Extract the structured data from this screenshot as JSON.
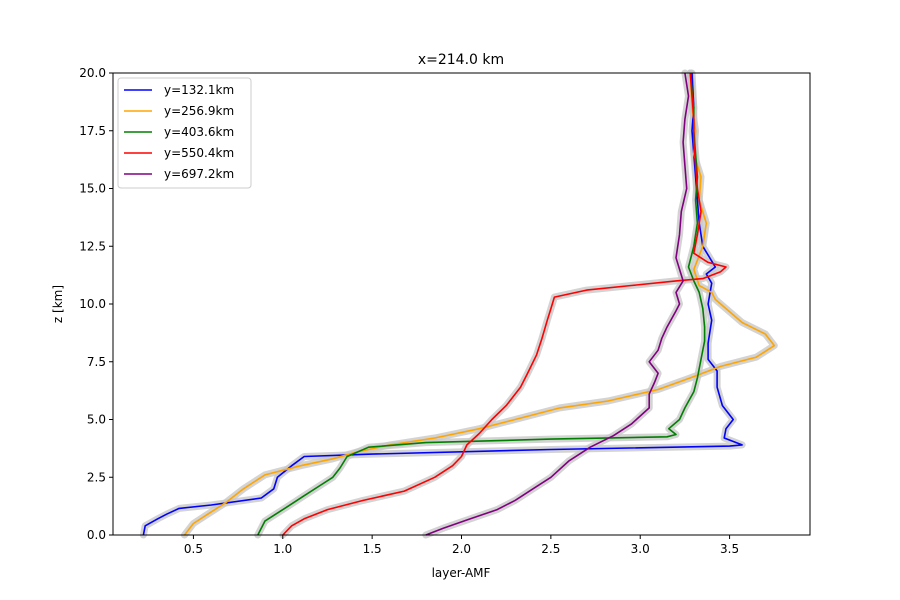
{
  "chart_data": {
    "type": "line",
    "title": "x=214.0 km",
    "xlabel": "layer-AMF",
    "ylabel": "z [km]",
    "xlim": [
      0.05,
      3.95
    ],
    "ylim": [
      0,
      20
    ],
    "xticks": [
      0.5,
      1.0,
      1.5,
      2.0,
      2.5,
      3.0,
      3.5
    ],
    "xtick_labels": [
      "0.5",
      "1.0",
      "1.5",
      "2.0",
      "2.5",
      "3.0",
      "3.5"
    ],
    "yticks": [
      0,
      2.5,
      5,
      7.5,
      10,
      12.5,
      15,
      17.5,
      20
    ],
    "ytick_labels": [
      "0.0",
      "2.5",
      "5.0",
      "7.5",
      "10.0",
      "12.5",
      "15.0",
      "17.5",
      "20.0"
    ],
    "grid": false,
    "legend_position": "top-left",
    "uncertainty_band_color": "#c8c8c8",
    "series": [
      {
        "name": "y=132.1km",
        "color": "#0000ff",
        "points": [
          [
            0.22,
            0
          ],
          [
            0.23,
            0.4
          ],
          [
            0.3,
            0.7
          ],
          [
            0.35,
            0.9
          ],
          [
            0.42,
            1.15
          ],
          [
            0.6,
            1.3
          ],
          [
            0.88,
            1.6
          ],
          [
            0.95,
            2.0
          ],
          [
            0.97,
            2.5
          ],
          [
            1.05,
            3.0
          ],
          [
            1.12,
            3.4
          ],
          [
            1.5,
            3.5
          ],
          [
            2.5,
            3.7
          ],
          [
            3.5,
            3.85
          ],
          [
            3.57,
            3.9
          ],
          [
            3.47,
            4.2
          ],
          [
            3.48,
            4.6
          ],
          [
            3.52,
            5.0
          ],
          [
            3.46,
            5.6
          ],
          [
            3.43,
            6.4
          ],
          [
            3.43,
            7.1
          ],
          [
            3.38,
            7.6
          ],
          [
            3.38,
            8.3
          ],
          [
            3.4,
            9.3
          ],
          [
            3.38,
            10.0
          ],
          [
            3.4,
            10.9
          ],
          [
            3.37,
            11.3
          ],
          [
            3.42,
            11.6
          ],
          [
            3.35,
            12.5
          ],
          [
            3.33,
            13.5
          ],
          [
            3.32,
            14.5
          ],
          [
            3.31,
            15.5
          ],
          [
            3.3,
            16.5
          ],
          [
            3.29,
            17.5
          ],
          [
            3.3,
            18.5
          ],
          [
            3.29,
            20.0
          ]
        ]
      },
      {
        "name": "y=256.9km",
        "color": "#ffa500",
        "points": [
          [
            0.45,
            0
          ],
          [
            0.5,
            0.5
          ],
          [
            0.58,
            0.9
          ],
          [
            0.68,
            1.4
          ],
          [
            0.78,
            2.0
          ],
          [
            0.9,
            2.6
          ],
          [
            1.1,
            3.0
          ],
          [
            1.28,
            3.3
          ],
          [
            1.42,
            3.6
          ],
          [
            1.6,
            3.9
          ],
          [
            1.85,
            4.2
          ],
          [
            2.1,
            4.6
          ],
          [
            2.3,
            5.0
          ],
          [
            2.55,
            5.5
          ],
          [
            2.82,
            5.8
          ],
          [
            3.1,
            6.3
          ],
          [
            3.28,
            6.8
          ],
          [
            3.45,
            7.3
          ],
          [
            3.65,
            7.7
          ],
          [
            3.75,
            8.2
          ],
          [
            3.7,
            8.7
          ],
          [
            3.57,
            9.2
          ],
          [
            3.48,
            9.8
          ],
          [
            3.42,
            10.2
          ],
          [
            3.4,
            10.5
          ],
          [
            3.33,
            10.8
          ],
          [
            3.3,
            11.5
          ],
          [
            3.35,
            12.5
          ],
          [
            3.37,
            13.5
          ],
          [
            3.33,
            14.5
          ],
          [
            3.34,
            15.5
          ],
          [
            3.3,
            16.5
          ],
          [
            3.31,
            17.5
          ],
          [
            3.29,
            18.5
          ],
          [
            3.28,
            20.0
          ]
        ]
      },
      {
        "name": "y=403.6km",
        "color": "#008000",
        "points": [
          [
            0.86,
            0
          ],
          [
            0.9,
            0.6
          ],
          [
            1.02,
            1.2
          ],
          [
            1.12,
            1.7
          ],
          [
            1.2,
            2.1
          ],
          [
            1.28,
            2.5
          ],
          [
            1.32,
            2.9
          ],
          [
            1.36,
            3.4
          ],
          [
            1.48,
            3.8
          ],
          [
            1.8,
            4.0
          ],
          [
            2.5,
            4.15
          ],
          [
            3.15,
            4.25
          ],
          [
            3.2,
            4.35
          ],
          [
            3.16,
            4.6
          ],
          [
            3.22,
            5.0
          ],
          [
            3.25,
            5.5
          ],
          [
            3.3,
            6.2
          ],
          [
            3.32,
            6.8
          ],
          [
            3.34,
            7.6
          ],
          [
            3.36,
            8.4
          ],
          [
            3.36,
            9.0
          ],
          [
            3.35,
            9.8
          ],
          [
            3.33,
            10.5
          ],
          [
            3.3,
            11.0
          ],
          [
            3.27,
            11.6
          ],
          [
            3.3,
            12.5
          ],
          [
            3.32,
            13.5
          ],
          [
            3.31,
            14.5
          ],
          [
            3.32,
            15.5
          ],
          [
            3.31,
            16.5
          ],
          [
            3.3,
            17.5
          ],
          [
            3.3,
            18.5
          ],
          [
            3.28,
            20.0
          ]
        ]
      },
      {
        "name": "y=550.4km",
        "color": "#ff0000",
        "points": [
          [
            1.0,
            0
          ],
          [
            1.05,
            0.4
          ],
          [
            1.12,
            0.7
          ],
          [
            1.25,
            1.1
          ],
          [
            1.45,
            1.5
          ],
          [
            1.68,
            1.9
          ],
          [
            1.85,
            2.5
          ],
          [
            1.95,
            3.0
          ],
          [
            2.0,
            3.4
          ],
          [
            2.03,
            3.9
          ],
          [
            2.1,
            4.4
          ],
          [
            2.17,
            5.0
          ],
          [
            2.25,
            5.6
          ],
          [
            2.33,
            6.4
          ],
          [
            2.37,
            7.0
          ],
          [
            2.42,
            7.8
          ],
          [
            2.45,
            8.5
          ],
          [
            2.48,
            9.3
          ],
          [
            2.5,
            9.8
          ],
          [
            2.52,
            10.3
          ],
          [
            2.7,
            10.6
          ],
          [
            2.95,
            10.8
          ],
          [
            3.2,
            11.0
          ],
          [
            3.35,
            11.1
          ],
          [
            3.45,
            11.4
          ],
          [
            3.48,
            11.6
          ],
          [
            3.38,
            11.8
          ],
          [
            3.3,
            12.2
          ],
          [
            3.32,
            13.0
          ],
          [
            3.34,
            14.0
          ],
          [
            3.32,
            15.0
          ],
          [
            3.31,
            16.0
          ],
          [
            3.3,
            17.0
          ],
          [
            3.3,
            18.0
          ],
          [
            3.29,
            19.0
          ],
          [
            3.28,
            20.0
          ]
        ]
      },
      {
        "name": "y=697.2km",
        "color": "#800080",
        "points": [
          [
            1.8,
            0
          ],
          [
            1.9,
            0.3
          ],
          [
            2.05,
            0.7
          ],
          [
            2.2,
            1.1
          ],
          [
            2.3,
            1.5
          ],
          [
            2.4,
            2.0
          ],
          [
            2.5,
            2.5
          ],
          [
            2.6,
            3.2
          ],
          [
            2.72,
            3.8
          ],
          [
            2.85,
            4.3
          ],
          [
            2.95,
            4.8
          ],
          [
            3.05,
            5.5
          ],
          [
            3.05,
            6.1
          ],
          [
            3.08,
            6.6
          ],
          [
            3.1,
            7.0
          ],
          [
            3.05,
            7.5
          ],
          [
            3.1,
            8.0
          ],
          [
            3.12,
            8.5
          ],
          [
            3.15,
            9.0
          ],
          [
            3.2,
            9.7
          ],
          [
            3.22,
            10.0
          ],
          [
            3.2,
            10.5
          ],
          [
            3.24,
            11.0
          ],
          [
            3.2,
            12.0
          ],
          [
            3.22,
            13.0
          ],
          [
            3.23,
            14.0
          ],
          [
            3.26,
            15.0
          ],
          [
            3.25,
            16.0
          ],
          [
            3.24,
            17.0
          ],
          [
            3.25,
            18.0
          ],
          [
            3.27,
            19.0
          ],
          [
            3.25,
            20.0
          ]
        ]
      }
    ]
  }
}
